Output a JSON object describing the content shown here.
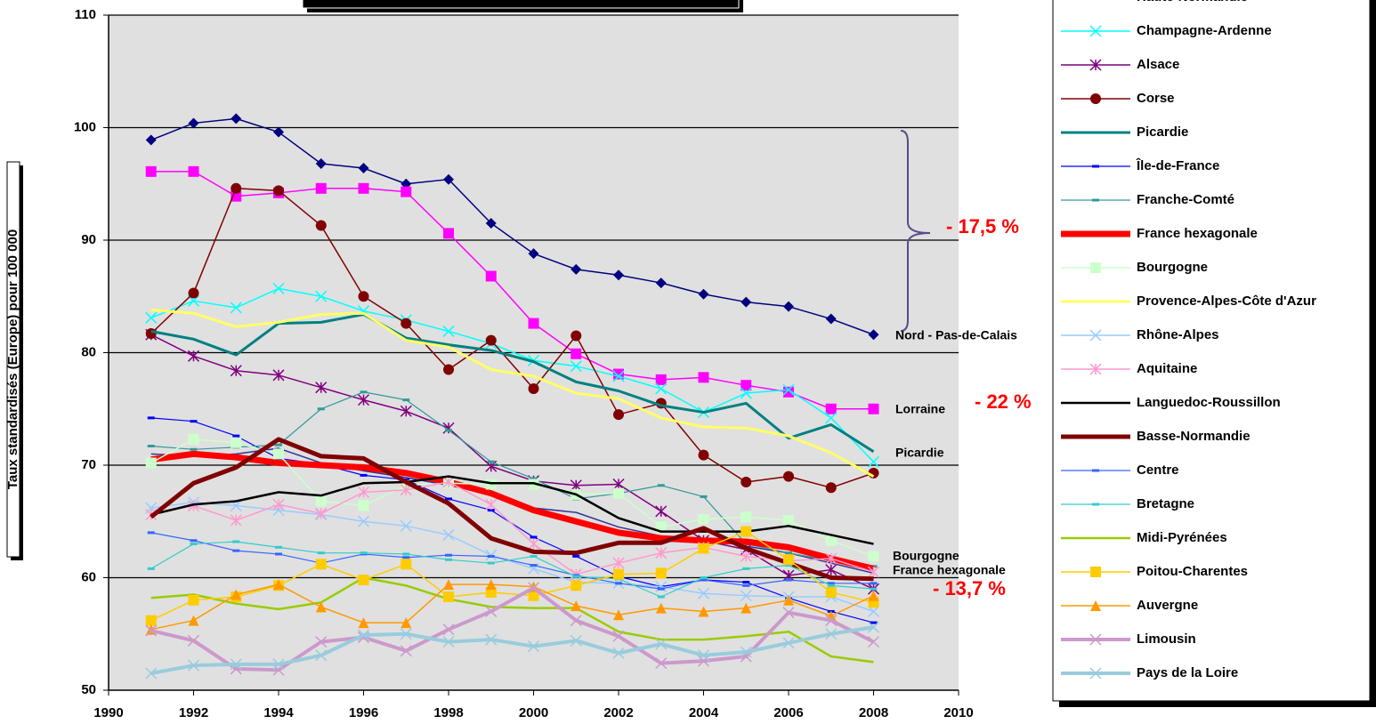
{
  "chart_data": {
    "type": "line",
    "y_label": "Taux standardisés (Europe) pour 100 000",
    "x": [
      1991,
      1992,
      1993,
      1994,
      1995,
      1996,
      1997,
      1998,
      1999,
      2000,
      2001,
      2002,
      2003,
      2004,
      2005,
      2006,
      2007,
      2008
    ],
    "xlim": [
      1990,
      2010
    ],
    "xticks": [
      1990,
      1992,
      1994,
      1996,
      1998,
      2000,
      2002,
      2004,
      2006,
      2008,
      2010
    ],
    "ylim": [
      50,
      110
    ],
    "yticks": [
      50,
      60,
      70,
      80,
      90,
      100,
      110
    ],
    "grid": true,
    "series": [
      {
        "name": "Nord-Pas-de-Calais",
        "color": "#000080",
        "marker": "diamond",
        "width": 1.5,
        "values": [
          98.9,
          100.4,
          100.8,
          99.6,
          96.8,
          96.4,
          95,
          95.4,
          91.5,
          88.8,
          87.4,
          86.9,
          86.2,
          85.2,
          84.5,
          84.1,
          83,
          81.6
        ]
      },
      {
        "name": "Lorraine",
        "color": "#ff00ff",
        "marker": "square",
        "width": 1.5,
        "values": [
          96.1,
          96.1,
          93.9,
          94.2,
          94.6,
          94.6,
          94.3,
          90.6,
          86.8,
          82.6,
          79.9,
          78.1,
          77.6,
          77.8,
          77.1,
          76.5,
          75,
          75
        ]
      },
      {
        "name": "Haute-Normandie",
        "color": "#333399",
        "marker": "none",
        "width": 1.5,
        "values": [
          71,
          70.8,
          71,
          71.5,
          70.2,
          69.5,
          68.9,
          68.2,
          67.5,
          66.2,
          65.8,
          64.5,
          63.7,
          63.5,
          62.8,
          62.2,
          61.3,
          60.4
        ]
      },
      {
        "name": "Champagne-Ardenne",
        "color": "#00ffff",
        "marker": "x",
        "width": 1.5,
        "values": [
          83.1,
          84.6,
          84,
          85.7,
          85,
          83.7,
          82.9,
          81.9,
          80.8,
          79.3,
          78.8,
          77.9,
          76.8,
          74.7,
          76.4,
          76.7,
          74.2,
          70.3
        ]
      },
      {
        "name": "Alsace",
        "color": "#800080",
        "marker": "star",
        "width": 1.5,
        "values": [
          81.6,
          79.7,
          78.4,
          78,
          76.9,
          75.8,
          74.8,
          73.3,
          69.9,
          68.6,
          68.2,
          68.3,
          65.9,
          63.3,
          62.5,
          60.2,
          60.7,
          59
        ]
      },
      {
        "name": "Corse",
        "color": "#800000",
        "marker": "circle",
        "width": 1.5,
        "values": [
          81.7,
          85.3,
          94.6,
          94.4,
          91.3,
          85,
          82.6,
          78.5,
          81.1,
          76.8,
          81.5,
          74.5,
          75.5,
          70.9,
          68.5,
          69,
          68,
          69.3
        ]
      },
      {
        "name": "Picardie",
        "color": "#008080",
        "marker": "none",
        "width": 3,
        "values": [
          81.9,
          81.2,
          79.8,
          82.6,
          82.7,
          83.4,
          81.3,
          80.7,
          80.2,
          79.2,
          77.4,
          76.6,
          75.3,
          74.7,
          75.5,
          72.4,
          73.6,
          71.2
        ]
      },
      {
        "name": "Île-de-France",
        "color": "#0000ff",
        "marker": "dash",
        "width": 1.2,
        "values": [
          74.2,
          73.9,
          72.6,
          70.6,
          70.1,
          69.1,
          68.7,
          67,
          66,
          63.6,
          61.9,
          60.1,
          59.2,
          59.8,
          59.6,
          58.2,
          57,
          56
        ]
      },
      {
        "name": "Franche-Comté",
        "color": "#339999",
        "marker": "dash",
        "width": 1.2,
        "values": [
          71.7,
          71.4,
          71.6,
          71.8,
          75,
          76.5,
          75.8,
          73.1,
          70.3,
          68.8,
          67,
          67.5,
          68.2,
          67.2,
          63,
          62.2,
          61.5,
          61
        ]
      },
      {
        "name": "France hexagonale",
        "color": "#ff0000",
        "marker": "none",
        "width": 7,
        "values": [
          70.5,
          71,
          70.7,
          70.2,
          70,
          69.8,
          69.3,
          68.5,
          67.5,
          66,
          65,
          64,
          63.5,
          63.3,
          63.2,
          62.7,
          61.7,
          60.8
        ]
      },
      {
        "name": "Bourgogne",
        "color": "#ccffcc",
        "marker": "square",
        "width": 1.5,
        "values": [
          70.2,
          72.3,
          72,
          71,
          66.8,
          66.4,
          68.2,
          68.4,
          68.3,
          68.3,
          67.4,
          67.5,
          64.5,
          65.2,
          65.4,
          65.1,
          63.3,
          61.9
        ]
      },
      {
        "name": "Provence-Alpes-Côte d'Azur",
        "color": "#ffff66",
        "marker": "none",
        "width": 3,
        "values": [
          83.8,
          83.5,
          82.3,
          82.7,
          83.4,
          83.5,
          81.1,
          80.5,
          78.5,
          77.9,
          76.4,
          75.9,
          74.2,
          73.4,
          73.3,
          72.6,
          71.1,
          69
        ]
      },
      {
        "name": "Rhône-Alpes",
        "color": "#99ccff",
        "marker": "x",
        "width": 1.5,
        "values": [
          66.2,
          66.7,
          66.4,
          66,
          65.6,
          65,
          64.6,
          63.8,
          62,
          60.8,
          59.6,
          59.5,
          59.2,
          58.6,
          58.4,
          58.3,
          58.3,
          57
        ]
      },
      {
        "name": "Aquitaine",
        "color": "#ff99cc",
        "marker": "star",
        "width": 1.5,
        "values": [
          65.6,
          66.4,
          65.1,
          66.5,
          65.7,
          67.6,
          67.8,
          68.5,
          66.5,
          63,
          60.3,
          61.3,
          62.2,
          62.7,
          61.9,
          61.5,
          61.7,
          60.5
        ]
      },
      {
        "name": "Languedoc-Roussillon",
        "color": "#000000",
        "marker": "none",
        "width": 2.5,
        "values": [
          65.6,
          66.5,
          66.8,
          67.6,
          67.3,
          68.4,
          68.5,
          69,
          68.4,
          68.4,
          67.4,
          65.3,
          64.1,
          64.1,
          64.1,
          64.6,
          63.8,
          63
        ]
      },
      {
        "name": "Basse-Normandie",
        "color": "#800000",
        "marker": "none",
        "width": 5,
        "values": [
          65.4,
          68.4,
          69.8,
          72.3,
          70.8,
          70.6,
          68.5,
          66.6,
          63.5,
          62.3,
          62.2,
          63.1,
          63.1,
          64.4,
          62.6,
          61.3,
          60,
          59.9
        ]
      },
      {
        "name": "Centre",
        "color": "#3366ff",
        "marker": "dash",
        "width": 1.2,
        "values": [
          64,
          63.3,
          62.4,
          62.1,
          61.3,
          62.1,
          61.8,
          62,
          61.9,
          61.1,
          60.2,
          59.5,
          59,
          59.8,
          59.3,
          59.8,
          59.5,
          59.5
        ]
      },
      {
        "name": "Bretagne",
        "color": "#33cccc",
        "marker": "dash",
        "width": 1.2,
        "values": [
          60.8,
          63,
          63.2,
          62.7,
          62.2,
          62.2,
          62.1,
          61.6,
          61.3,
          61.9,
          60.1,
          59.9,
          58.3,
          60,
          60.8,
          61.1,
          59.3,
          59
        ]
      },
      {
        "name": "Midi-Pyrénées",
        "color": "#99cc00",
        "marker": "none",
        "width": 2.5,
        "values": [
          58.2,
          58.5,
          57.7,
          57.2,
          57.8,
          60,
          59.3,
          58.1,
          57.4,
          57.3,
          57.3,
          55.2,
          54.5,
          54.5,
          54.8,
          55.2,
          53,
          52.5
        ]
      },
      {
        "name": "Poitou-Charentes",
        "color": "#ffcc00",
        "marker": "square",
        "width": 1.5,
        "values": [
          56.2,
          58,
          58.3,
          59.3,
          61.2,
          59.8,
          61.2,
          58.3,
          58.7,
          58.4,
          59.3,
          60.3,
          60.4,
          62.6,
          64.1,
          61.6,
          58.7,
          57.8
        ]
      },
      {
        "name": "Auvergne",
        "color": "#ff9900",
        "marker": "triangle",
        "width": 1.5,
        "values": [
          55.4,
          56.2,
          58.5,
          59.4,
          57.4,
          56,
          56,
          59.4,
          59.4,
          59.2,
          57.5,
          56.7,
          57.3,
          57,
          57.3,
          58,
          56.6,
          58.4
        ]
      },
      {
        "name": "Limousin",
        "color": "#cc99cc",
        "marker": "x",
        "width": 4,
        "values": [
          55.3,
          54.4,
          51.9,
          51.8,
          54.3,
          54.7,
          53.5,
          55.4,
          57,
          59.1,
          56.2,
          54.8,
          52.4,
          52.6,
          53,
          56.9,
          56.2,
          54.3
        ]
      },
      {
        "name": "Pays de la Loire",
        "color": "#99ccdd",
        "marker": "x",
        "width": 4,
        "values": [
          51.5,
          52.2,
          52.3,
          52.3,
          53.1,
          54.9,
          55,
          54.3,
          54.5,
          53.9,
          54.4,
          53.3,
          54.1,
          53.1,
          53.4,
          54.2,
          55,
          55.6
        ]
      }
    ],
    "annotations": [
      "Nord - Pas-de-Calais",
      "Lorraine",
      "Picardie",
      "Bourgogne",
      "France hexagonale",
      "- 17,5 %",
      "- 22 %",
      "- 13,7 %"
    ]
  }
}
